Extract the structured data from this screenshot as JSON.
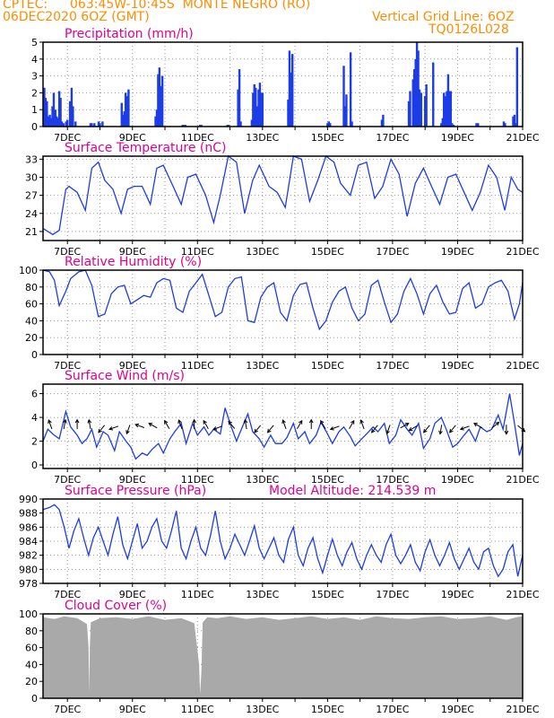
{
  "header": {
    "source": "CPTEC:",
    "location": "063:45W-10:45S  MONTE NEGRO (RO)",
    "run": "06DEC2020 6OZ (GMT)",
    "grid_note": "Vertical Grid Line: 6OZ",
    "code": "TQ0126L028"
  },
  "colors": {
    "header": "#ff8c00",
    "title": "#e0008c",
    "series": "#1c3ce8",
    "bars": "#1c3ce8",
    "cloud": "#a9a9a9",
    "arrows": "#000000",
    "grid": "#9a9a9a"
  },
  "chart_data": [
    {
      "type": "bar",
      "title": "Precipitation (mm/h)",
      "x_tick_labels": [
        "7DEC",
        "9DEC",
        "11DEC",
        "13DEC",
        "15DEC",
        "17DEC",
        "19DEC",
        "21DEC"
      ],
      "x_days": [
        7,
        9,
        11,
        13,
        15,
        17,
        19,
        21
      ],
      "xlim": [
        6.25,
        21.0
      ],
      "ylim": [
        0,
        5
      ],
      "y_ticks": [
        0,
        1,
        2,
        3,
        4,
        5
      ],
      "grid": true,
      "x": [
        6.29,
        6.33,
        6.37,
        6.42,
        6.46,
        6.5,
        6.54,
        6.58,
        6.63,
        6.67,
        6.71,
        6.75,
        6.79,
        6.83,
        6.88,
        6.96,
        7.0,
        7.08,
        7.13,
        7.17,
        7.25,
        7.71,
        7.75,
        7.83,
        7.96,
        8.0,
        8.08,
        8.67,
        8.71,
        8.75,
        8.79,
        8.83,
        8.88,
        9.71,
        9.75,
        9.79,
        9.83,
        9.88,
        9.92,
        10.54,
        10.58,
        10.63,
        11.08,
        11.12,
        11.92,
        11.96,
        12.25,
        12.29,
        12.33,
        12.67,
        12.71,
        12.75,
        12.79,
        12.83,
        12.88,
        12.92,
        12.96,
        13.0,
        13.79,
        13.83,
        13.88,
        13.92,
        15.0,
        15.04,
        15.08,
        15.5,
        15.54,
        15.58,
        15.71,
        15.75,
        16.67,
        16.71,
        17.5,
        17.54,
        17.63,
        17.67,
        17.71,
        17.75,
        17.79,
        17.83,
        17.88,
        18.0,
        18.04,
        18.25,
        18.5,
        18.54,
        18.58,
        18.63,
        18.67,
        18.71,
        18.75,
        18.79,
        18.83,
        18.88,
        19.58,
        19.63,
        20.42,
        20.46,
        20.71,
        20.75,
        20.79,
        20.83
      ],
      "values": [
        2.3,
        1.7,
        1.5,
        0.6,
        0.7,
        0.5,
        1.2,
        2.0,
        1.0,
        0.6,
        0.5,
        2.1,
        1.7,
        0.3,
        0.2,
        0.3,
        0.4,
        1.5,
        2.3,
        1.2,
        0.3,
        0.2,
        0.2,
        0.2,
        0.3,
        0.2,
        0.3,
        1.4,
        0.7,
        0.9,
        2.0,
        1.8,
        2.2,
        0.6,
        1.0,
        3.1,
        3.5,
        2.4,
        3.0,
        0.1,
        0.1,
        0.1,
        0.1,
        0.1,
        0.1,
        0.1,
        2.2,
        3.4,
        0.3,
        0.4,
        2.0,
        2.5,
        2.3,
        1.2,
        2.2,
        2.6,
        2.0,
        2.0,
        1.6,
        4.5,
        3.2,
        4.3,
        0.2,
        0.3,
        0.2,
        3.6,
        1.2,
        1.9,
        4.4,
        0.3,
        0.4,
        0.7,
        1.5,
        2.1,
        2.8,
        3.4,
        4.0,
        5.0,
        4.5,
        2.2,
        2.0,
        1.8,
        2.5,
        3.8,
        0.2,
        0.5,
        2.0,
        1.8,
        2.1,
        3.1,
        2.1,
        2.1,
        0.2,
        0.1,
        0.2,
        0.2,
        0.3,
        0.2,
        0.6,
        0.7,
        0.2,
        4.7
      ]
    },
    {
      "type": "line",
      "title": "Surface Temperature (nC)",
      "x_tick_labels": [
        "7DEC",
        "9DEC",
        "11DEC",
        "13DEC",
        "15DEC",
        "17DEC",
        "19DEC",
        "21DEC"
      ],
      "xlim": [
        6.25,
        21.0
      ],
      "ylim": [
        19.5,
        33.5
      ],
      "y_ticks": [
        21,
        24,
        27,
        30,
        33
      ],
      "grid": true,
      "x": [
        6.25,
        6.4,
        6.55,
        6.75,
        6.95,
        7.05,
        7.3,
        7.55,
        7.75,
        7.95,
        8.15,
        8.4,
        8.65,
        8.85,
        9.05,
        9.3,
        9.55,
        9.75,
        9.95,
        10.25,
        10.5,
        10.7,
        10.95,
        11.25,
        11.5,
        11.7,
        11.95,
        12.2,
        12.45,
        12.7,
        12.9,
        13.2,
        13.45,
        13.7,
        13.95,
        14.2,
        14.45,
        14.7,
        14.95,
        15.2,
        15.4,
        15.7,
        15.95,
        16.2,
        16.45,
        16.7,
        16.95,
        17.2,
        17.45,
        17.7,
        17.95,
        18.2,
        18.45,
        18.7,
        18.95,
        19.2,
        19.45,
        19.7,
        19.95,
        20.2,
        20.45,
        20.65,
        20.85,
        21.0
      ],
      "values": [
        21.5,
        21.0,
        20.5,
        21.2,
        28.0,
        28.5,
        27.5,
        24.5,
        31.5,
        32.5,
        29.5,
        28.0,
        24.0,
        28.0,
        28.5,
        28.5,
        25.5,
        31.5,
        32.0,
        28.5,
        25.5,
        30.0,
        30.5,
        27.0,
        22.5,
        27.0,
        33.5,
        32.5,
        24.0,
        29.5,
        32.0,
        28.5,
        27.5,
        25.0,
        33.5,
        33.0,
        26.0,
        29.5,
        33.5,
        32.5,
        29.0,
        27.0,
        32.0,
        32.5,
        26.5,
        28.5,
        33.0,
        30.5,
        23.5,
        29.0,
        31.5,
        28.5,
        25.5,
        30.0,
        30.5,
        27.5,
        24.5,
        27.5,
        32.0,
        30.0,
        24.5,
        30.0,
        28.0,
        27.5
      ]
    },
    {
      "type": "line",
      "title": "Relative Humidity (%)",
      "x_tick_labels": [
        "7DEC",
        "9DEC",
        "11DEC",
        "13DEC",
        "15DEC",
        "17DEC",
        "19DEC",
        "21DEC"
      ],
      "xlim": [
        6.25,
        21.0
      ],
      "ylim": [
        0,
        100
      ],
      "y_ticks": [
        0,
        20,
        40,
        60,
        80,
        100
      ],
      "grid": true,
      "x": [
        6.25,
        6.45,
        6.6,
        6.75,
        6.95,
        7.1,
        7.35,
        7.55,
        7.75,
        7.95,
        8.15,
        8.35,
        8.55,
        8.75,
        8.95,
        9.15,
        9.35,
        9.55,
        9.75,
        9.95,
        10.15,
        10.35,
        10.55,
        10.75,
        10.95,
        11.15,
        11.35,
        11.55,
        11.75,
        11.95,
        12.15,
        12.35,
        12.55,
        12.75,
        12.95,
        13.15,
        13.35,
        13.55,
        13.75,
        13.95,
        14.15,
        14.35,
        14.55,
        14.75,
        14.95,
        15.15,
        15.35,
        15.55,
        15.75,
        15.95,
        16.15,
        16.35,
        16.55,
        16.75,
        16.95,
        17.15,
        17.35,
        17.55,
        17.75,
        17.95,
        18.15,
        18.35,
        18.55,
        18.75,
        18.95,
        19.15,
        19.35,
        19.55,
        19.75,
        19.95,
        20.15,
        20.35,
        20.55,
        20.75,
        20.9,
        21.0
      ],
      "values": [
        100,
        98,
        88,
        58,
        75,
        90,
        98,
        100,
        82,
        45,
        48,
        72,
        80,
        82,
        60,
        65,
        70,
        68,
        85,
        90,
        88,
        55,
        50,
        75,
        85,
        95,
        70,
        45,
        50,
        80,
        90,
        92,
        40,
        38,
        68,
        80,
        85,
        50,
        40,
        70,
        83,
        85,
        55,
        30,
        40,
        62,
        75,
        80,
        55,
        40,
        48,
        82,
        88,
        62,
        38,
        48,
        75,
        90,
        72,
        48,
        72,
        82,
        62,
        48,
        50,
        78,
        85,
        55,
        60,
        80,
        85,
        88,
        75,
        42,
        60,
        85
      ]
    },
    {
      "type": "line",
      "title": "Surface Wind (m/s)",
      "x_tick_labels": [
        "7DEC",
        "9DEC",
        "11DEC",
        "13DEC",
        "15DEC",
        "17DEC",
        "19DEC",
        "21DEC"
      ],
      "xlim": [
        6.25,
        21.0
      ],
      "ylim": [
        -0.3,
        6.8
      ],
      "y_ticks": [
        0,
        2,
        4,
        6
      ],
      "grid": true,
      "x": [
        6.25,
        6.4,
        6.55,
        6.75,
        6.95,
        7.1,
        7.3,
        7.45,
        7.6,
        7.75,
        7.9,
        8.1,
        8.25,
        8.45,
        8.6,
        8.8,
        8.95,
        9.1,
        9.3,
        9.45,
        9.6,
        9.8,
        9.95,
        10.15,
        10.3,
        10.5,
        10.65,
        10.85,
        11.0,
        11.2,
        11.35,
        11.5,
        11.7,
        11.85,
        12.0,
        12.2,
        12.35,
        12.55,
        12.7,
        12.9,
        13.05,
        13.25,
        13.4,
        13.6,
        13.75,
        13.95,
        14.1,
        14.3,
        14.45,
        14.65,
        14.8,
        15.0,
        15.15,
        15.35,
        15.5,
        15.7,
        15.85,
        16.05,
        16.2,
        16.4,
        16.55,
        16.75,
        16.9,
        17.1,
        17.25,
        17.45,
        17.6,
        17.8,
        17.95,
        18.15,
        18.3,
        18.5,
        18.65,
        18.85,
        19.0,
        19.2,
        19.35,
        19.55,
        19.7,
        19.9,
        20.05,
        20.25,
        20.4,
        20.6,
        20.75,
        20.9,
        21.0
      ],
      "values": [
        2.0,
        3.0,
        2.6,
        2.2,
        4.5,
        3.2,
        2.5,
        1.8,
        2.2,
        3.0,
        1.5,
        2.8,
        2.5,
        1.2,
        2.8,
        2.0,
        1.5,
        0.5,
        1.0,
        0.8,
        1.3,
        1.8,
        1.0,
        2.2,
        2.8,
        3.5,
        1.8,
        3.5,
        2.5,
        3.2,
        2.5,
        3.0,
        2.6,
        4.8,
        3.5,
        2.0,
        3.0,
        4.3,
        2.8,
        2.2,
        1.5,
        2.5,
        1.8,
        1.8,
        2.3,
        3.5,
        2.2,
        2.8,
        1.8,
        2.5,
        3.6,
        2.6,
        1.8,
        2.8,
        3.2,
        2.4,
        1.6,
        2.2,
        2.6,
        3.2,
        2.8,
        3.5,
        1.8,
        2.5,
        3.8,
        3.0,
        2.5,
        3.5,
        1.4,
        2.2,
        3.5,
        4.0,
        3.0,
        1.5,
        1.8,
        2.5,
        3.0,
        2.0,
        3.2,
        2.8,
        3.0,
        4.2,
        3.0,
        6.0,
        3.5,
        0.8,
        1.8
      ],
      "arrow_days": [
        6.5,
        6.9,
        7.3,
        7.7,
        8.1,
        8.5,
        8.9,
        9.3,
        9.7,
        10.1,
        10.5,
        10.9,
        11.3,
        11.7,
        12.1,
        12.5,
        12.9,
        13.3,
        13.7,
        14.1,
        14.5,
        14.9,
        15.3,
        15.7,
        16.1,
        16.5,
        16.9,
        17.3,
        17.7,
        18.1,
        18.5,
        18.9,
        19.3,
        19.7,
        20.1,
        20.5,
        20.9
      ],
      "arrow_dir_deg": [
        110,
        80,
        90,
        100,
        230,
        200,
        250,
        160,
        150,
        120,
        110,
        90,
        120,
        200,
        130,
        100,
        230,
        230,
        110,
        60,
        90,
        120,
        200,
        60,
        110,
        230,
        250,
        30,
        210,
        230,
        260,
        230,
        200,
        150,
        40,
        270,
        320
      ]
    },
    {
      "type": "line",
      "title": "Surface Pressure (hPa)",
      "subtitle": "Model Altitude: 214.539  m",
      "x_tick_labels": [
        "7DEC",
        "9DEC",
        "11DEC",
        "13DEC",
        "15DEC",
        "17DEC",
        "19DEC",
        "21DEC"
      ],
      "xlim": [
        6.25,
        21.0
      ],
      "ylim": [
        978,
        990
      ],
      "y_ticks": [
        978,
        980,
        982,
        984,
        986,
        988,
        990
      ],
      "grid": true,
      "x": [
        6.25,
        6.45,
        6.6,
        6.75,
        6.9,
        7.05,
        7.2,
        7.35,
        7.5,
        7.65,
        7.8,
        7.95,
        8.1,
        8.25,
        8.4,
        8.55,
        8.7,
        8.85,
        9.0,
        9.15,
        9.3,
        9.45,
        9.6,
        9.75,
        9.9,
        10.05,
        10.2,
        10.35,
        10.5,
        10.65,
        10.8,
        10.95,
        11.1,
        11.25,
        11.4,
        11.55,
        11.7,
        11.85,
        12.0,
        12.15,
        12.3,
        12.45,
        12.6,
        12.75,
        12.9,
        13.05,
        13.2,
        13.35,
        13.5,
        13.65,
        13.8,
        13.95,
        14.1,
        14.25,
        14.4,
        14.55,
        14.7,
        14.85,
        15.0,
        15.15,
        15.3,
        15.45,
        15.6,
        15.75,
        15.9,
        16.05,
        16.2,
        16.35,
        16.5,
        16.65,
        16.8,
        16.95,
        17.1,
        17.25,
        17.4,
        17.55,
        17.7,
        17.85,
        18.0,
        18.15,
        18.3,
        18.45,
        18.6,
        18.75,
        18.9,
        19.05,
        19.2,
        19.35,
        19.5,
        19.65,
        19.8,
        19.95,
        20.1,
        20.25,
        20.4,
        20.55,
        20.7,
        20.85,
        21.0
      ],
      "values": [
        988.5,
        988.8,
        989.2,
        988.5,
        986.0,
        983.0,
        985.5,
        987.2,
        984.5,
        982.0,
        984.5,
        986.0,
        984.0,
        982.0,
        985.0,
        987.5,
        983.5,
        981.5,
        984.0,
        986.5,
        983.0,
        984.0,
        986.0,
        987.2,
        984.0,
        983.0,
        985.5,
        988.3,
        983.0,
        981.5,
        984.0,
        986.0,
        983.0,
        982.0,
        984.8,
        988.3,
        984.0,
        981.5,
        983.0,
        985.0,
        983.5,
        982.0,
        984.0,
        986.2,
        983.0,
        981.5,
        983.0,
        984.5,
        982.0,
        981.0,
        984.3,
        986.0,
        982.0,
        980.5,
        983.0,
        984.5,
        981.5,
        979.5,
        982.0,
        984.3,
        982.0,
        980.5,
        982.5,
        983.8,
        981.5,
        980.0,
        982.0,
        983.5,
        982.0,
        981.0,
        983.5,
        985.0,
        982.0,
        980.8,
        982.0,
        983.5,
        981.0,
        979.8,
        982.5,
        984.2,
        982.0,
        980.5,
        982.0,
        983.8,
        981.5,
        980.0,
        981.5,
        983.0,
        981.0,
        980.0,
        982.5,
        983.0,
        980.5,
        979.0,
        980.0,
        982.5,
        983.5,
        979.0,
        982.0
      ]
    },
    {
      "type": "area",
      "title": "Cloud Cover (%)",
      "x_tick_labels": [
        "7DEC",
        "9DEC",
        "11DEC",
        "13DEC",
        "15DEC",
        "17DEC",
        "19DEC",
        "21DEC"
      ],
      "xlim": [
        6.25,
        21.0
      ],
      "ylim": [
        0,
        100
      ],
      "y_ticks": [
        0,
        20,
        40,
        60,
        80,
        100
      ],
      "grid": true,
      "x": [
        6.25,
        6.6,
        6.9,
        7.3,
        7.6,
        7.65,
        7.67,
        7.69,
        7.72,
        8.0,
        8.5,
        9.0,
        9.5,
        10.0,
        10.5,
        10.9,
        11.05,
        11.08,
        11.12,
        11.16,
        11.3,
        11.6,
        12.0,
        12.5,
        13.0,
        13.5,
        14.0,
        14.5,
        15.0,
        15.5,
        16.0,
        16.5,
        17.0,
        17.5,
        18.0,
        18.5,
        19.0,
        19.5,
        20.0,
        20.5,
        20.8,
        21.0
      ],
      "values": [
        96,
        94,
        97,
        95,
        88,
        60,
        6,
        60,
        90,
        95,
        96,
        94,
        97,
        93,
        95,
        89,
        40,
        5,
        30,
        90,
        96,
        95,
        97,
        94,
        96,
        93,
        95,
        97,
        94,
        96,
        93,
        97,
        95,
        94,
        96,
        97,
        94,
        95,
        97,
        93,
        96,
        97
      ]
    }
  ]
}
